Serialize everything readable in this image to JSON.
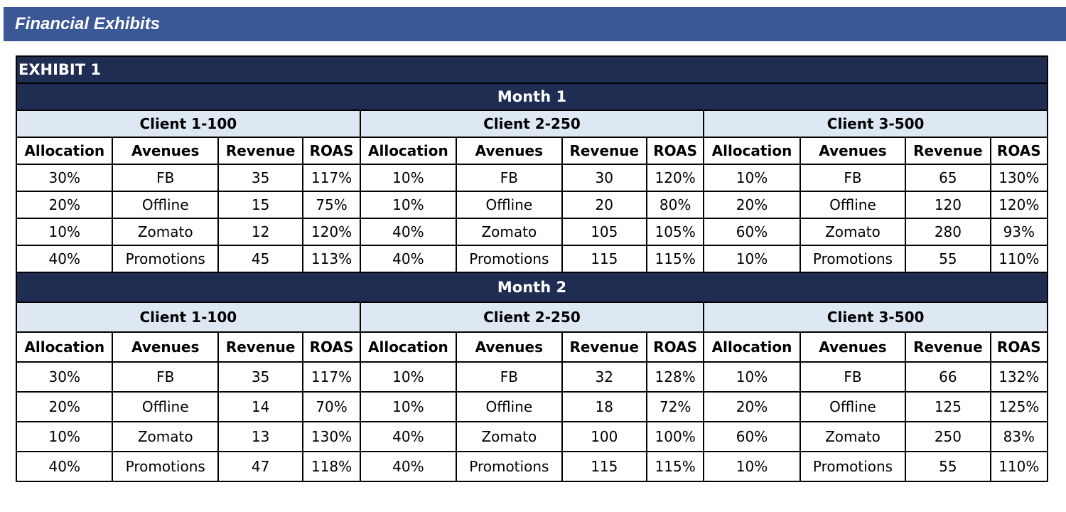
{
  "page_title": "Financial Exhibits",
  "exhibit_label": "EXHIBIT 1",
  "colors": {
    "title_bar": "#3a5796",
    "dark_header": "#1f2d53",
    "client_header": "#dde8f3"
  },
  "column_headers": [
    "Allocation",
    "Avenues",
    "Revenue",
    "ROAS"
  ],
  "months": [
    {
      "label": "Month 1",
      "clients": [
        {
          "name": "Client 1-100",
          "rows": [
            [
              "30%",
              "FB",
              "35",
              "117%"
            ],
            [
              "20%",
              "Offline",
              "15",
              "75%"
            ],
            [
              "10%",
              "Zomato",
              "12",
              "120%"
            ],
            [
              "40%",
              "Promotions",
              "45",
              "113%"
            ]
          ]
        },
        {
          "name": "Client 2-250",
          "rows": [
            [
              "10%",
              "FB",
              "30",
              "120%"
            ],
            [
              "10%",
              "Offline",
              "20",
              "80%"
            ],
            [
              "40%",
              "Zomato",
              "105",
              "105%"
            ],
            [
              "40%",
              "Promotions",
              "115",
              "115%"
            ]
          ]
        },
        {
          "name": "Client 3-500",
          "rows": [
            [
              "10%",
              "FB",
              "65",
              "130%"
            ],
            [
              "20%",
              "Offline",
              "120",
              "120%"
            ],
            [
              "60%",
              "Zomato",
              "280",
              "93%"
            ],
            [
              "10%",
              "Promotions",
              "55",
              "110%"
            ]
          ]
        }
      ]
    },
    {
      "label": "Month 2",
      "clients": [
        {
          "name": "Client 1-100",
          "rows": [
            [
              "30%",
              "FB",
              "35",
              "117%"
            ],
            [
              "20%",
              "Offline",
              "14",
              "70%"
            ],
            [
              "10%",
              "Zomato",
              "13",
              "130%"
            ],
            [
              "40%",
              "Promotions",
              "47",
              "118%"
            ]
          ]
        },
        {
          "name": "Client 2-250",
          "rows": [
            [
              "10%",
              "FB",
              "32",
              "128%"
            ],
            [
              "10%",
              "Offline",
              "18",
              "72%"
            ],
            [
              "40%",
              "Zomato",
              "100",
              "100%"
            ],
            [
              "40%",
              "Promotions",
              "115",
              "115%"
            ]
          ]
        },
        {
          "name": "Client 3-500",
          "rows": [
            [
              "10%",
              "FB",
              "66",
              "132%"
            ],
            [
              "20%",
              "Offline",
              "125",
              "125%"
            ],
            [
              "60%",
              "Zomato",
              "250",
              "83%"
            ],
            [
              "10%",
              "Promotions",
              "55",
              "110%"
            ]
          ]
        }
      ]
    }
  ]
}
